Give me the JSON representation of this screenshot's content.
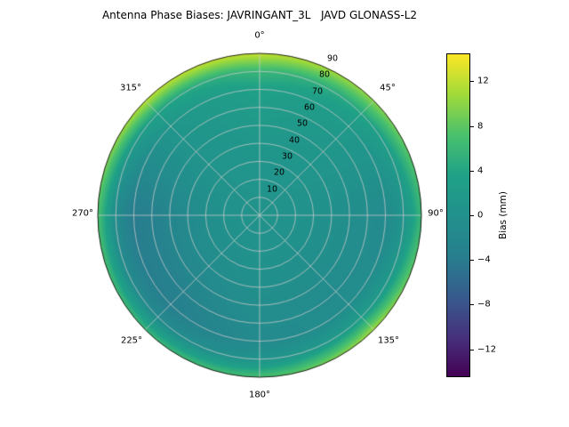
{
  "title": "Antenna Phase Biases: JAVRINGANT_3L   JAVD GLONASS-L2",
  "polar": {
    "angle_labels": [
      "0°",
      "45°",
      "90°",
      "135°",
      "180°",
      "225°",
      "270°",
      "315°"
    ],
    "radial_labels": [
      "10",
      "20",
      "30",
      "40",
      "50",
      "60",
      "70",
      "80",
      "90"
    ]
  },
  "colorbar": {
    "label": "Bias (mm)",
    "ticks": [
      "12",
      "8",
      "4",
      "0",
      "−4",
      "−8",
      "−12"
    ]
  },
  "chart_data": {
    "type": "heatmap",
    "projection": "polar",
    "title": "Antenna Phase Biases: JAVRINGANT_3L   JAVD GLONASS-L2",
    "colorbar_label": "Bias (mm)",
    "colormap": "viridis",
    "vmin": -14.5,
    "vmax": 14.5,
    "colorbar_ticks": [
      12,
      8,
      4,
      0,
      -4,
      -8,
      -12
    ],
    "angle_tick_labels": [
      "0°",
      "45°",
      "90°",
      "135°",
      "180°",
      "225°",
      "270°",
      "315°"
    ],
    "radial_tick_labels": [
      10,
      20,
      30,
      40,
      50,
      60,
      70,
      80,
      90
    ],
    "azimuth_deg": [
      0,
      45,
      90,
      135,
      180,
      225,
      270,
      315
    ],
    "zenith_deg": [
      0,
      10,
      20,
      30,
      40,
      50,
      60,
      70,
      80,
      90
    ],
    "bias_mm": [
      [
        0.5,
        0.5,
        0.5,
        0.5,
        0.5,
        0.5,
        0.5,
        0.5
      ],
      [
        0.6,
        0.5,
        0.3,
        0.3,
        0.3,
        0.2,
        0.2,
        0.4
      ],
      [
        0.8,
        0.6,
        0.2,
        0.1,
        0.2,
        0.0,
        0.0,
        0.5
      ],
      [
        1.0,
        0.8,
        0.0,
        -0.2,
        0.0,
        -0.5,
        -0.6,
        0.5
      ],
      [
        1.4,
        1.0,
        -0.3,
        -0.5,
        -0.3,
        -1.2,
        -1.5,
        0.6
      ],
      [
        1.8,
        1.2,
        -0.6,
        -0.9,
        -0.6,
        -2.0,
        -2.4,
        0.7
      ],
      [
        2.4,
        1.5,
        -1.0,
        -1.2,
        -1.0,
        -3.0,
        -3.4,
        0.9
      ],
      [
        3.4,
        2.0,
        -1.4,
        -0.8,
        -1.4,
        -3.6,
        -4.0,
        1.2
      ],
      [
        6.0,
        4.0,
        0.5,
        2.5,
        0.5,
        -1.5,
        -1.0,
        3.5
      ],
      [
        12.5,
        10.0,
        6.0,
        11.0,
        7.0,
        6.0,
        7.5,
        12.0
      ]
    ],
    "viridis_stops": [
      "#440154",
      "#46327e",
      "#365c8d",
      "#277f8e",
      "#21918c",
      "#1fa187",
      "#4ac16d",
      "#a0da39",
      "#fde725"
    ],
    "grid": true,
    "grid_color": "#cccccc"
  }
}
